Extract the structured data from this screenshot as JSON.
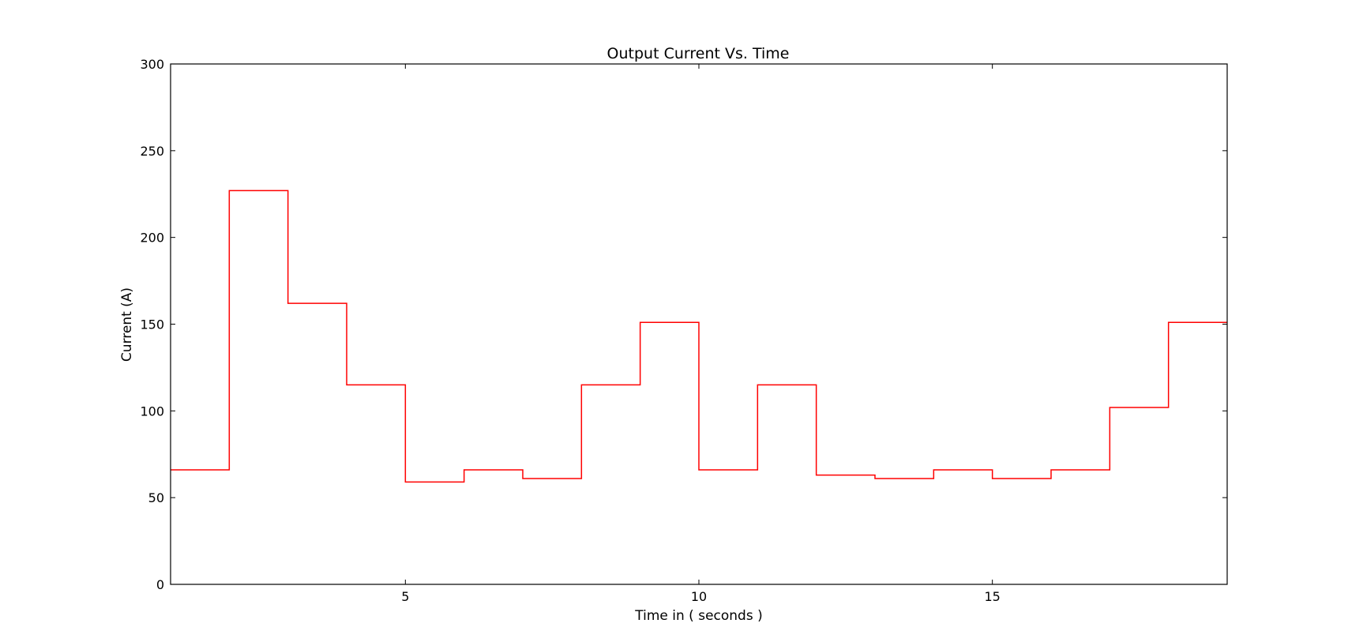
{
  "chart_data": {
    "type": "line",
    "step": "post",
    "title": "Output Current Vs. Time",
    "xlabel": "Time in ( seconds )",
    "ylabel": "Current (A)",
    "xlim": [
      1,
      19
    ],
    "ylim": [
      0,
      300
    ],
    "xticks": [
      5,
      10,
      15
    ],
    "yticks": [
      0,
      50,
      100,
      150,
      200,
      250,
      300
    ],
    "grid": false,
    "series": [
      {
        "color": "#ff0000",
        "x": [
          1,
          2,
          3,
          4,
          5,
          6,
          7,
          8,
          9,
          10,
          11,
          12,
          13,
          14,
          15,
          16,
          17,
          18,
          19
        ],
        "y": [
          66,
          227,
          162,
          115,
          59,
          66,
          61,
          115,
          151,
          66,
          115,
          63,
          61,
          66,
          61,
          66,
          102,
          151,
          151
        ]
      }
    ]
  }
}
